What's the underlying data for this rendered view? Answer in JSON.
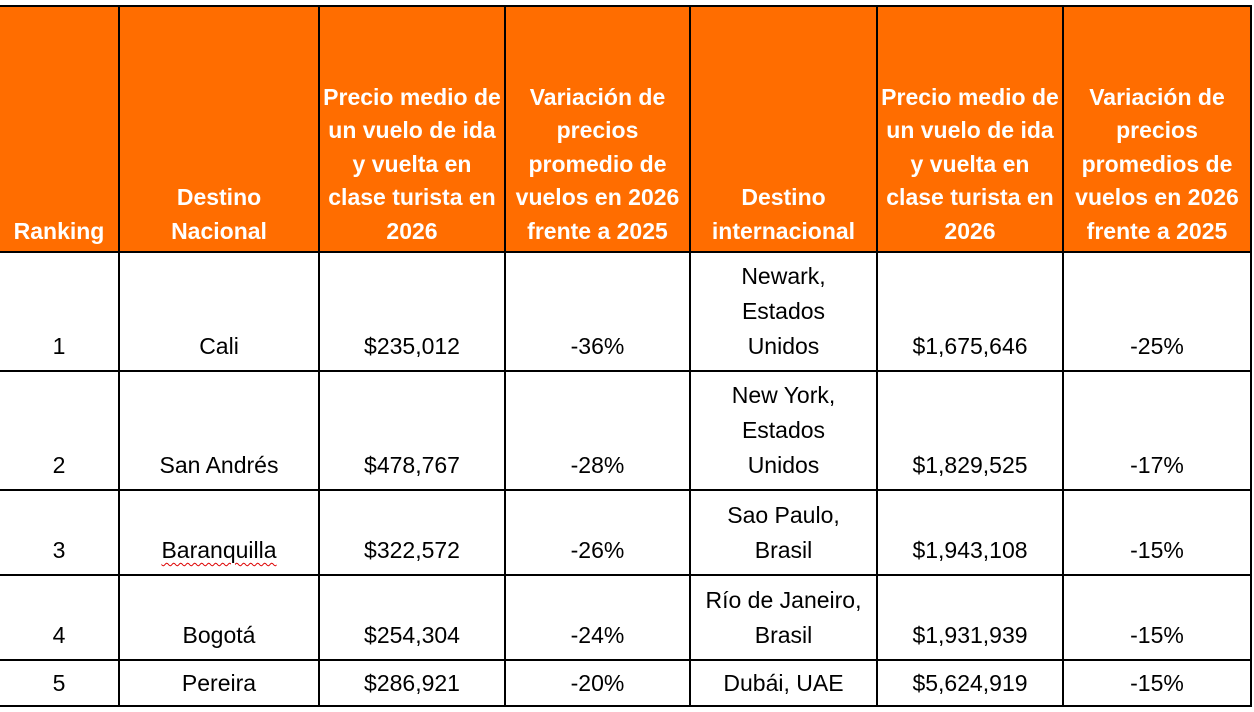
{
  "headers": [
    "Ranking",
    "Destino Nacional",
    "Precio medio de un vuelo de ida y vuelta en clase turista en 2026",
    "Variación de precios promedio de vuelos en 2026 frente a 2025",
    "Destino internacional",
    "Precio medio de un vuelo de ida y vuelta en clase turista en 2026",
    "Variación de precios promedios de vuelos en 2026 frente a 2025"
  ],
  "rows": [
    {
      "rank": "1",
      "national": "Cali",
      "national_price": "$235,012",
      "national_change": "-36%",
      "international": "Newark, Estados Unidos",
      "international_price": "$1,675,646",
      "international_change": "-25%"
    },
    {
      "rank": "2",
      "national": "San Andrés",
      "national_price": "$478,767",
      "national_change": "-28%",
      "international": "New York, Estados Unidos",
      "international_price": "$1,829,525",
      "international_change": "-17%"
    },
    {
      "rank": "3",
      "national": "Baranquilla",
      "national_price": "$322,572",
      "national_change": "-26%",
      "international": "Sao Paulo, Brasil",
      "international_price": "$1,943,108",
      "international_change": "-15%"
    },
    {
      "rank": "4",
      "national": "Bogotá",
      "national_price": "$254,304",
      "national_change": "-24%",
      "international": "Río de Janeiro, Brasil",
      "international_price": "$1,931,939",
      "international_change": "-15%"
    },
    {
      "rank": "5",
      "national": "Pereira",
      "national_price": "$286,921",
      "national_change": "-20%",
      "international": "Dubái, UAE",
      "international_price": "$5,624,919",
      "international_change": "-15%"
    }
  ],
  "colors": {
    "header_bg": "#FF6D00",
    "header_text": "#FFFFFF"
  }
}
